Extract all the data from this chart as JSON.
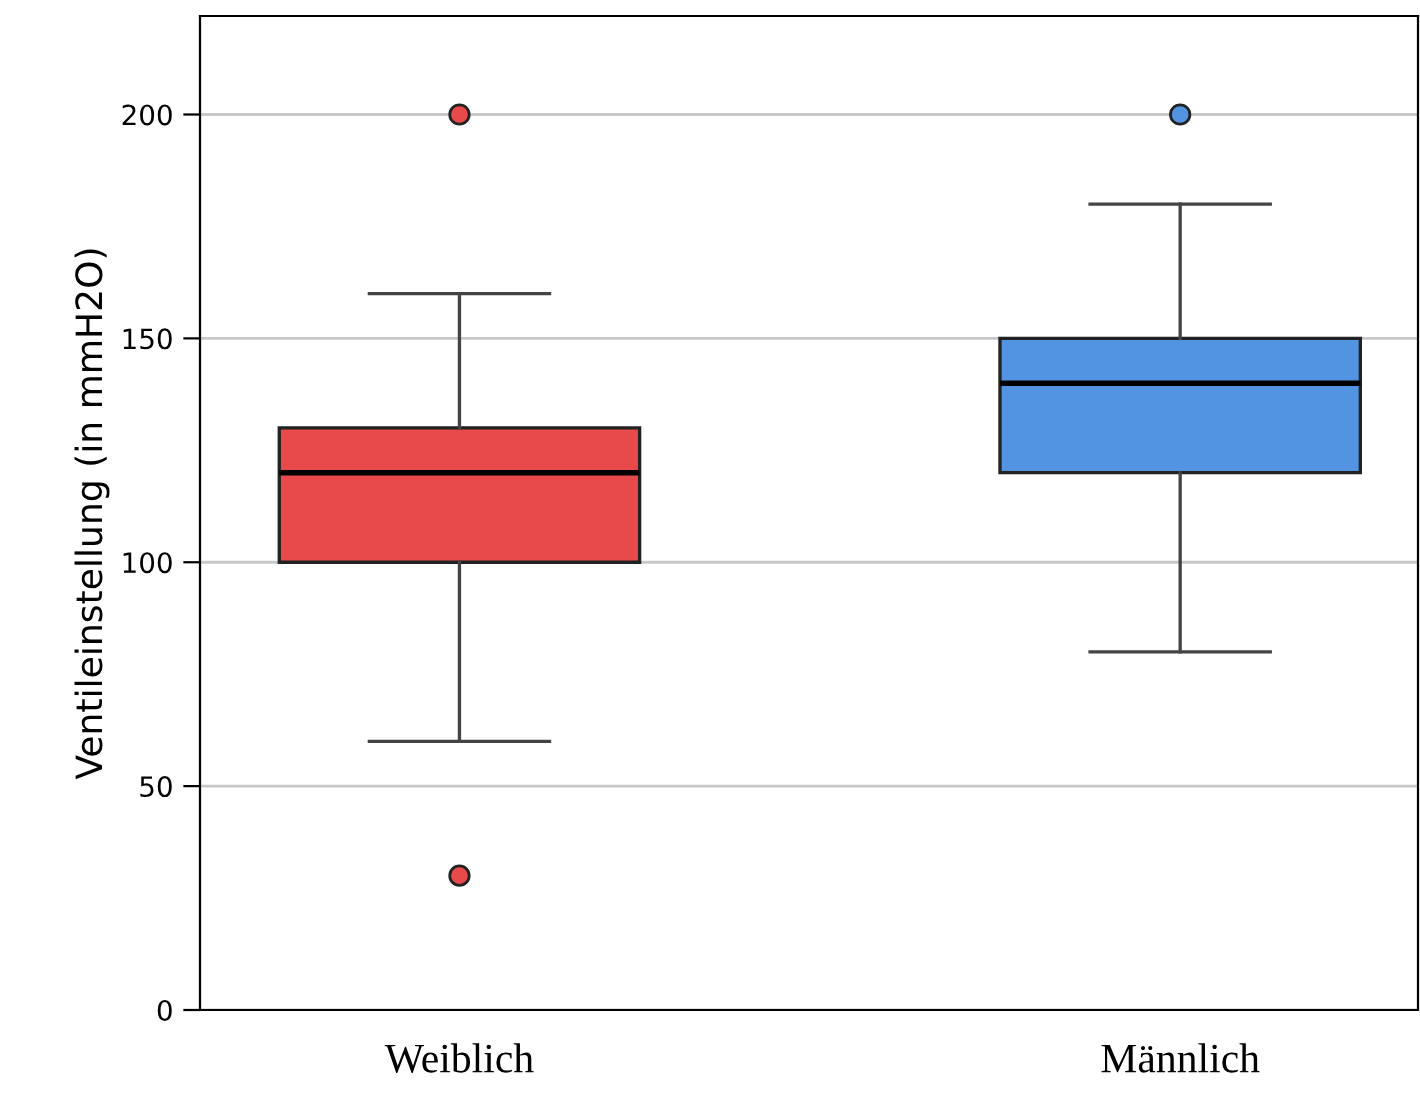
{
  "chart_data": {
    "type": "box",
    "ylabel": "Ventileinstellung (in mmH2O)",
    "categories": [
      "Weiblich",
      "Männlich"
    ],
    "colors": [
      "#e84a4c",
      "#5294e2"
    ],
    "boxes": [
      {
        "low": 60,
        "q1": 100,
        "median": 120,
        "q3": 130,
        "high": 160,
        "outliers": [
          200,
          30
        ]
      },
      {
        "low": 80,
        "q1": 120,
        "median": 140,
        "q3": 150,
        "high": 180,
        "outliers": [
          200
        ]
      }
    ],
    "ylim": [
      0,
      222
    ],
    "yticks": [
      0,
      50,
      100,
      150,
      200
    ],
    "grid": "y"
  }
}
